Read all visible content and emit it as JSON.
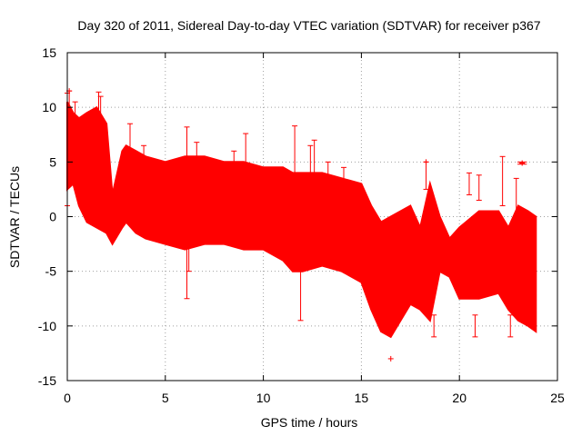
{
  "chart_data": {
    "type": "scatter",
    "title": "Day 320 of 2011, Sidereal Day-to-day VTEC variation (SDTVAR) for receiver p367",
    "xlabel": "GPS time / hours",
    "ylabel": "SDTVAR / TECUs",
    "xlim": [
      0,
      25
    ],
    "ylim": [
      -15,
      15
    ],
    "x_ticks": [
      0,
      5,
      10,
      15,
      20,
      25
    ],
    "x_tick_labels": [
      "0",
      "5",
      "10",
      "15",
      "20",
      "25"
    ],
    "y_ticks": [
      -15,
      -10,
      -5,
      0,
      5,
      10,
      15
    ],
    "y_tick_labels": [
      "-15",
      "-10",
      "-5",
      "0",
      "5",
      "10",
      "15"
    ],
    "grid": true,
    "marker": "+",
    "color": "#ff0000",
    "band": {
      "x": [
        0.0,
        0.3,
        0.6,
        1.0,
        1.5,
        2.0,
        2.3,
        2.8,
        3.0,
        3.5,
        4.0,
        5.0,
        6.0,
        7.0,
        8.0,
        9.0,
        10.0,
        11.0,
        11.5,
        12.0,
        13.0,
        14.0,
        15.0,
        15.5,
        16.0,
        16.5,
        17.0,
        17.5,
        18.0,
        18.5,
        19.0,
        19.5,
        20.0,
        21.0,
        22.0,
        22.5,
        23.0,
        23.5,
        23.9
      ],
      "upper": [
        10.5,
        9.5,
        9.0,
        9.5,
        10.0,
        8.5,
        2.0,
        6.0,
        6.5,
        6.0,
        5.5,
        5.0,
        5.5,
        5.5,
        5.0,
        5.0,
        4.5,
        4.5,
        4.0,
        4.0,
        4.0,
        3.5,
        3.0,
        1.0,
        -0.5,
        0.0,
        0.5,
        1.0,
        -1.0,
        3.0,
        0.0,
        -2.0,
        -1.0,
        0.5,
        0.5,
        -1.0,
        1.0,
        0.5,
        0.0
      ],
      "lower": [
        2.5,
        3.0,
        1.0,
        -0.5,
        -1.0,
        -1.5,
        -2.5,
        -1.0,
        -0.5,
        -1.5,
        -2.0,
        -2.5,
        -3.0,
        -2.5,
        -2.5,
        -3.0,
        -3.0,
        -4.0,
        -5.0,
        -5.0,
        -4.5,
        -5.0,
        -6.0,
        -8.5,
        -10.5,
        -11.0,
        -9.5,
        -8.0,
        -8.5,
        -9.5,
        -5.0,
        -5.5,
        -7.5,
        -7.5,
        -7.0,
        -8.5,
        -9.5,
        -10.0,
        -10.5
      ]
    },
    "spikes": [
      {
        "x": 0.0,
        "lo": 1.0,
        "hi": 11.3
      },
      {
        "x": 0.1,
        "lo": 4.0,
        "hi": 11.5
      },
      {
        "x": 0.4,
        "lo": 5.5,
        "hi": 10.5
      },
      {
        "x": 1.6,
        "lo": 8.0,
        "hi": 11.4
      },
      {
        "x": 1.7,
        "lo": 7.0,
        "hi": 11.0
      },
      {
        "x": 3.2,
        "lo": 5.0,
        "hi": 8.5
      },
      {
        "x": 3.9,
        "lo": 4.0,
        "hi": 6.5
      },
      {
        "x": 6.1,
        "lo": -7.5,
        "hi": 8.2
      },
      {
        "x": 6.6,
        "lo": 4.0,
        "hi": 6.8
      },
      {
        "x": 6.2,
        "lo": -5.0,
        "hi": -2.5
      },
      {
        "x": 9.1,
        "lo": 4.5,
        "hi": 7.6
      },
      {
        "x": 8.5,
        "lo": 4.0,
        "hi": 6.0
      },
      {
        "x": 11.6,
        "lo": -2.0,
        "hi": 8.3
      },
      {
        "x": 11.9,
        "lo": -9.5,
        "hi": -4.0
      },
      {
        "x": 12.4,
        "lo": 3.0,
        "hi": 6.5
      },
      {
        "x": 12.6,
        "lo": -3.0,
        "hi": 7.0
      },
      {
        "x": 13.3,
        "lo": 3.0,
        "hi": 5.0
      },
      {
        "x": 14.1,
        "lo": 2.0,
        "hi": 4.5
      },
      {
        "x": 18.3,
        "lo": 2.5,
        "hi": 5.0
      },
      {
        "x": 20.5,
        "lo": 2.0,
        "hi": 4.0
      },
      {
        "x": 21.0,
        "lo": 1.5,
        "hi": 3.8
      },
      {
        "x": 22.2,
        "lo": 1.0,
        "hi": 5.5
      },
      {
        "x": 22.9,
        "lo": -1.0,
        "hi": 3.5
      },
      {
        "x": 23.1,
        "lo": 4.8,
        "hi": 5.0
      },
      {
        "x": 23.3,
        "lo": 4.8,
        "hi": 5.0
      },
      {
        "x": 18.7,
        "lo": -11.0,
        "hi": -9.0
      },
      {
        "x": 20.8,
        "lo": -11.0,
        "hi": -9.0
      },
      {
        "x": 22.6,
        "lo": -11.0,
        "hi": -9.0
      }
    ],
    "points": [
      {
        "x": 16.5,
        "y": -13.0
      },
      {
        "x": 18.3,
        "y": 5.0
      },
      {
        "x": 23.2,
        "y": 4.9
      },
      {
        "x": 0.1,
        "y": 11.5
      }
    ]
  }
}
